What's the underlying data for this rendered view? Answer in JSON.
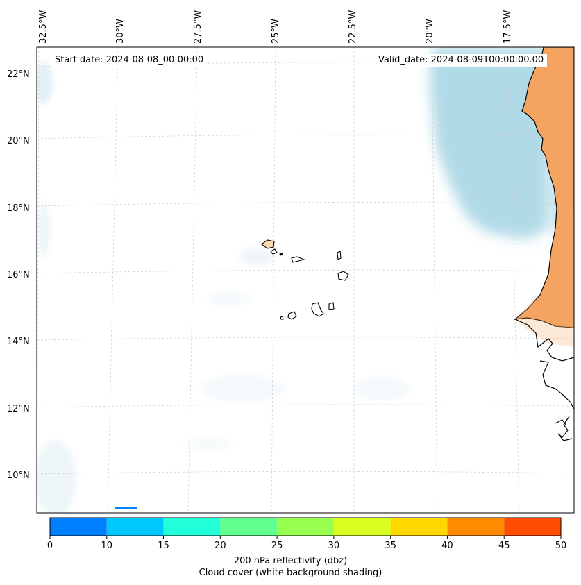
{
  "header": {
    "start_date": "Start date: 2024-08-08_00:00:00",
    "valid_date": "Valid_date: 2024-08-09T00:00:00.00"
  },
  "axes": {
    "longitude_labels": [
      "32.5°W",
      "30°W",
      "27.5°W",
      "25°W",
      "22.5°W",
      "20°W",
      "17.5°W"
    ],
    "latitude_labels": [
      "22°N",
      "20°N",
      "18°N",
      "16°N",
      "14°N",
      "12°N",
      "10°N"
    ]
  },
  "colorbar": {
    "ticks": [
      "0",
      "10",
      "15",
      "20",
      "25",
      "30",
      "35",
      "40",
      "45",
      "50"
    ],
    "colors": [
      "#0080ff",
      "#00c8ff",
      "#20ffd8",
      "#60ff90",
      "#98ff50",
      "#d8ff20",
      "#ffd800",
      "#ff8c00",
      "#ff4c00"
    ],
    "label_line1": "200 hPa reflectivity (dbz)",
    "label_line2": "Cloud cover (white background shading)"
  },
  "colors": {
    "land": "#f4a460",
    "cloud": "#add8e6",
    "coast": "#000000",
    "grid": "#cccccc"
  },
  "chart_data": {
    "type": "heatmap",
    "variable": "200 hPa reflectivity (dbz)",
    "overlay": "Cloud cover (white background shading)",
    "x_range_deg": [
      -33,
      -15.5
    ],
    "y_range_deg": [
      9,
      22.8
    ],
    "colorbar_levels": [
      0,
      10,
      15,
      20,
      25,
      30,
      35,
      40,
      45,
      50
    ]
  }
}
